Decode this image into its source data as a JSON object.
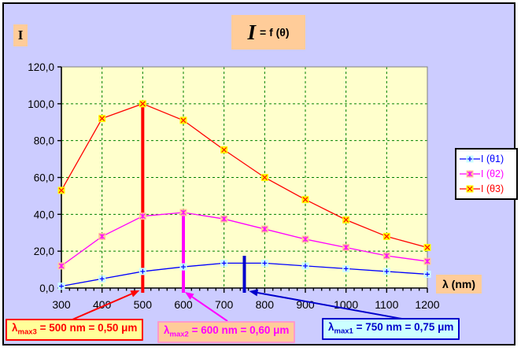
{
  "header": {
    "y_axis_corner_label": "I",
    "title_main": "I",
    "title_rest": "= f (θ)"
  },
  "x_axis_label": "λ (nm)",
  "colors": {
    "canvas_bg": "#ccccff",
    "plot_bg": "#ffffcc",
    "grid": "#008000",
    "plot_border": "#808080",
    "axis": "#000000",
    "label_box_bg": "#ffcc99",
    "legend_bg": "#ffffff"
  },
  "annotations": [
    {
      "lambda": "λ",
      "sub": "max3",
      "text": "= 500 nm = 0,50 μm",
      "bg": "#ffff99",
      "border": "#ff0000",
      "text_color": "#ff0000",
      "target_nm": 500
    },
    {
      "lambda": "λ",
      "sub": "max2",
      "text": "= 600 nm = 0,60 μm",
      "bg": "#ffcc99",
      "border": "#ff99cc",
      "text_color": "#ff00ff",
      "target_nm": 600
    },
    {
      "lambda": "λ",
      "sub": "max1",
      "text": "= 750 nm = 0,75 μm",
      "bg": "#ccffff",
      "border": "#0000cc",
      "text_color": "#0000cc",
      "target_nm": 750
    }
  ],
  "chart_data": {
    "type": "line",
    "title": "I = f (θ)",
    "xlabel": "λ (nm)",
    "ylabel": "I",
    "xlim": [
      300,
      1200
    ],
    "ylim": [
      0,
      120
    ],
    "grid": true,
    "legend_position": "right",
    "x": [
      300,
      400,
      500,
      600,
      700,
      800,
      900,
      1000,
      1100,
      1200
    ],
    "x_tick_labels": [
      "300",
      "400",
      "500",
      "600",
      "700",
      "800",
      "900",
      "1000",
      "1100",
      "1200"
    ],
    "x_minor_tick_step": 20,
    "y_ticks": [
      {
        "v": 0,
        "label": "0,0"
      },
      {
        "v": 20,
        "label": "20,0"
      },
      {
        "v": 40,
        "label": "40,0"
      },
      {
        "v": 60,
        "label": "60,0"
      },
      {
        "v": 80,
        "label": "80,0"
      },
      {
        "v": 100,
        "label": "100,0"
      },
      {
        "v": 120,
        "label": "120,0"
      }
    ],
    "series": [
      {
        "name": "I (θ1)",
        "color": "#0000ff",
        "marker_fill": "#ccffff",
        "marker_glyph": "plus",
        "values": [
          1,
          5,
          9,
          11.5,
          13.5,
          13.5,
          12,
          10.5,
          9,
          7.5
        ]
      },
      {
        "name": "I (θ2)",
        "color": "#ff00ff",
        "marker_fill": "#ffcc99",
        "marker_glyph": "star",
        "values": [
          12,
          28,
          39,
          41,
          37.5,
          32,
          26.5,
          22,
          17.5,
          14.5
        ]
      },
      {
        "name": "I (θ3)",
        "color": "#ff0000",
        "marker_fill": "#ffff00",
        "marker_glyph": "x",
        "values": [
          53,
          92,
          100,
          91,
          75,
          60,
          48,
          37,
          28,
          22
        ]
      }
    ],
    "vlines": [
      {
        "x": 500,
        "y_top": 100,
        "color": "#ff0000"
      },
      {
        "x": 600,
        "y_top": 41,
        "color": "#ff00ff"
      },
      {
        "x": 750,
        "y_top": 17.5,
        "color": "#0000cc"
      }
    ]
  }
}
